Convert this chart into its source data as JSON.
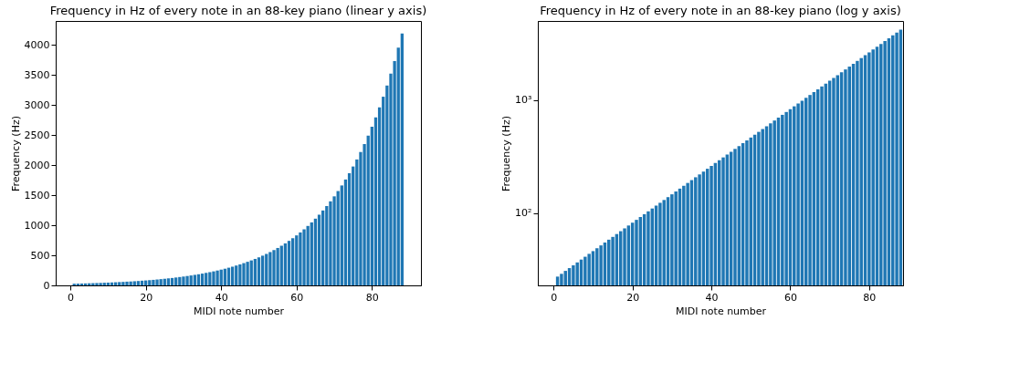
{
  "chart_data": [
    {
      "type": "bar",
      "title": "Frequency in Hz of every note in an 88-key piano (linear y axis)",
      "xlabel": "MIDI note number",
      "ylabel": "Frequency (Hz)",
      "x": [
        1,
        2,
        3,
        4,
        5,
        6,
        7,
        8,
        9,
        10,
        11,
        12,
        13,
        14,
        15,
        16,
        17,
        18,
        19,
        20,
        21,
        22,
        23,
        24,
        25,
        26,
        27,
        28,
        29,
        30,
        31,
        32,
        33,
        34,
        35,
        36,
        37,
        38,
        39,
        40,
        41,
        42,
        43,
        44,
        45,
        46,
        47,
        48,
        49,
        50,
        51,
        52,
        53,
        54,
        55,
        56,
        57,
        58,
        59,
        60,
        61,
        62,
        63,
        64,
        65,
        66,
        67,
        68,
        69,
        70,
        71,
        72,
        73,
        74,
        75,
        76,
        77,
        78,
        79,
        80,
        81,
        82,
        83,
        84,
        85,
        86,
        87,
        88
      ],
      "values": [
        28,
        29,
        31,
        33,
        35,
        37,
        39,
        41,
        44,
        46,
        49,
        52,
        55,
        58,
        62,
        65,
        69,
        73,
        78,
        82,
        87,
        92,
        98,
        104,
        110,
        117,
        123,
        131,
        139,
        147,
        156,
        165,
        175,
        185,
        196,
        208,
        220,
        233,
        247,
        262,
        277,
        294,
        311,
        330,
        349,
        370,
        392,
        415,
        440,
        466,
        494,
        523,
        554,
        587,
        622,
        659,
        698,
        740,
        784,
        831,
        880,
        932,
        988,
        1047,
        1109,
        1175,
        1245,
        1319,
        1397,
        1480,
        1568,
        1661,
        1760,
        1865,
        1976,
        2093,
        2217,
        2349,
        2489,
        2637,
        2794,
        2960,
        3136,
        3322,
        3520,
        3729,
        3951,
        4186
      ],
      "color": "#1f77b4",
      "xlim": [
        -3.9,
        93.0
      ],
      "xticks": [
        0,
        20,
        40,
        60,
        80
      ],
      "ylim": [
        0,
        4395
      ],
      "yticks": [
        0,
        500,
        1000,
        1500,
        2000,
        2500,
        3000,
        3500,
        4000
      ],
      "grid": false
    },
    {
      "type": "bar",
      "title": "Frequency in Hz of every note in an 88-key piano (log y axis)",
      "xlabel": "MIDI note number",
      "ylabel": "Frequency (Hz)",
      "x": [
        1,
        2,
        3,
        4,
        5,
        6,
        7,
        8,
        9,
        10,
        11,
        12,
        13,
        14,
        15,
        16,
        17,
        18,
        19,
        20,
        21,
        22,
        23,
        24,
        25,
        26,
        27,
        28,
        29,
        30,
        31,
        32,
        33,
        34,
        35,
        36,
        37,
        38,
        39,
        40,
        41,
        42,
        43,
        44,
        45,
        46,
        47,
        48,
        49,
        50,
        51,
        52,
        53,
        54,
        55,
        56,
        57,
        58,
        59,
        60,
        61,
        62,
        63,
        64,
        65,
        66,
        67,
        68,
        69,
        70,
        71,
        72,
        73,
        74,
        75,
        76,
        77,
        78,
        79,
        80,
        81,
        82,
        83,
        84,
        85,
        86,
        87,
        88
      ],
      "values": [
        27.5,
        29.1,
        30.9,
        32.7,
        34.6,
        36.7,
        38.9,
        41.2,
        43.7,
        46.2,
        49.0,
        51.9,
        55.0,
        58.3,
        61.7,
        65.4,
        69.3,
        73.4,
        77.8,
        82.4,
        87.3,
        92.5,
        98.0,
        103.8,
        110.0,
        116.5,
        123.5,
        130.8,
        138.6,
        146.8,
        155.6,
        164.8,
        174.6,
        185.0,
        196.0,
        207.7,
        220.0,
        233.1,
        246.9,
        261.6,
        277.2,
        293.7,
        311.1,
        329.6,
        349.2,
        370.0,
        392.0,
        415.3,
        440.0,
        466.2,
        493.9,
        523.3,
        554.4,
        587.3,
        622.3,
        659.3,
        698.5,
        740.0,
        784.0,
        830.6,
        880.0,
        932.3,
        987.8,
        1046.5,
        1108.7,
        1174.7,
        1244.5,
        1318.5,
        1396.9,
        1480.0,
        1568.0,
        1661.2,
        1760.0,
        1864.7,
        1975.5,
        2093.0,
        2217.5,
        2349.3,
        2489.0,
        2637.0,
        2793.8,
        2960.0,
        3136.0,
        3322.4,
        3520.0,
        3729.3,
        3951.1,
        4186.0
      ],
      "color": "#1f77b4",
      "xlim": [
        -4.0,
        88.6
      ],
      "xticks": [
        0,
        20,
        40,
        60,
        80
      ],
      "log": true,
      "ylim": [
        23,
        5000
      ],
      "yticks": [
        {
          "value": 100,
          "label": "10²"
        },
        {
          "value": 1000,
          "label": "10³"
        }
      ],
      "grid": false
    }
  ]
}
